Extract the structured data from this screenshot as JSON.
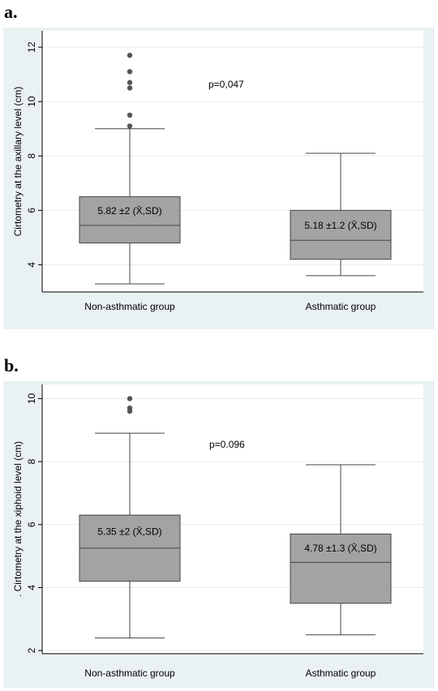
{
  "chart_data": [
    {
      "type": "box",
      "panel_label": "a.",
      "ylabel": "Cirtometry at the axillary level (cm)",
      "ylim": [
        3,
        12.6
      ],
      "yticks": [
        4,
        6,
        8,
        10,
        12
      ],
      "grid": true,
      "annotation": "p=0,047",
      "groups": [
        {
          "category": "Non-asthmatic group",
          "whisker_low": 3.3,
          "q1": 4.8,
          "median": 5.45,
          "q3": 6.5,
          "whisker_high": 9.0,
          "outliers": [
            9.1,
            9.5,
            10.5,
            10.7,
            11.1,
            11.7
          ],
          "label": "5.82 ±2 (X̄,SD)"
        },
        {
          "category": "Asthmatic group",
          "whisker_low": 3.6,
          "q1": 4.2,
          "median": 4.9,
          "q3": 6.0,
          "whisker_high": 8.1,
          "outliers": [],
          "label": "5.18 ±1.2 (X̄,SD)"
        }
      ]
    },
    {
      "type": "box",
      "panel_label": "b.",
      "ylabel": ". Cirtometry at the xiphoid level (cm)",
      "ylim": [
        1.9,
        10.45
      ],
      "yticks": [
        2,
        4,
        6,
        8,
        10
      ],
      "grid": true,
      "annotation": "p=0.096",
      "groups": [
        {
          "category": "Non-asthmatic group",
          "whisker_low": 2.4,
          "q1": 4.2,
          "median": 5.25,
          "q3": 6.3,
          "whisker_high": 8.9,
          "outliers": [
            9.6,
            9.7,
            10.0
          ],
          "label": "5.35 ±2 (X̄,SD)"
        },
        {
          "category": "Asthmatic group",
          "whisker_low": 2.5,
          "q1": 3.5,
          "median": 4.8,
          "q3": 5.7,
          "whisker_high": 7.9,
          "outliers": [],
          "label": "4.78 ±1.3 (X̄,SD)"
        }
      ]
    }
  ]
}
